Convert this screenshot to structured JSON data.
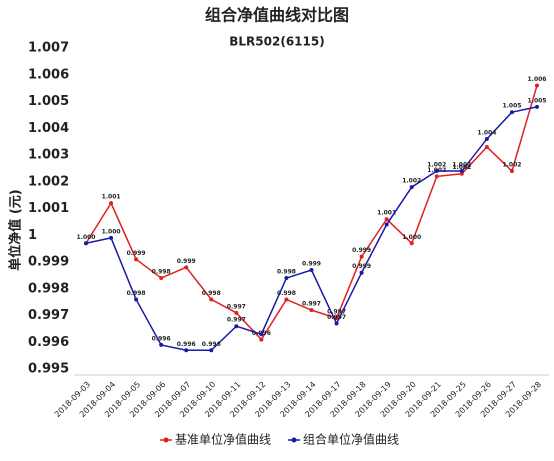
{
  "chart_data": {
    "type": "line",
    "title": "组合净值曲线对比图",
    "subtitle": "BLR502(6115)",
    "y_label": "单位净值 (元)",
    "categories": [
      "2018-09-03",
      "2018-09-04",
      "2018-09-05",
      "2018-09-06",
      "2018-09-07",
      "2018-09-10",
      "2018-09-11",
      "2018-09-12",
      "2018-09-13",
      "2018-09-14",
      "2018-09-17",
      "2018-09-18",
      "2018-09-19",
      "2018-09-20",
      "2018-09-21",
      "2018-09-25",
      "2018-09-26",
      "2018-09-27",
      "2018-09-28"
    ],
    "series": [
      {
        "name": "基准单位净值曲线",
        "color": "#e02020",
        "values": [
          0.9997,
          1.0012,
          0.9991,
          0.9984,
          0.9988,
          0.9976,
          0.9971,
          0.9961,
          0.9976,
          0.9972,
          0.9969,
          0.9992,
          1.0006,
          0.9997,
          1.0022,
          1.0023,
          1.0033,
          1.0024,
          1.0056
        ],
        "value_labels": [
          "1.000",
          "1.001",
          "0.999",
          "0.998",
          "0.999",
          "0.998",
          "0.997",
          "0.996",
          "0.998",
          "0.997",
          "0.997",
          "0.999",
          "1.001",
          "1.000",
          "1.002",
          "1.002",
          null,
          "1.002",
          "1.006"
        ]
      },
      {
        "name": "组合单位净值曲线",
        "color": "#1a1aa8",
        "values": [
          0.9997,
          0.9999,
          0.9976,
          0.9959,
          0.9957,
          0.9957,
          0.9966,
          0.9963,
          0.9984,
          0.9987,
          0.9967,
          0.9986,
          1.0004,
          1.0018,
          1.0024,
          1.0024,
          1.0036,
          1.0046,
          1.0048
        ],
        "value_labels": [
          null,
          "1.000",
          "0.998",
          "0.996",
          "0.996",
          "0.996",
          "0.997",
          null,
          "0.998",
          "0.999",
          "0.997",
          "0.999",
          null,
          "1.002",
          "1.002",
          "1.002",
          "1.004",
          "1.005",
          "1.005"
        ]
      }
    ],
    "ylim": [
      0.995,
      1.007
    ],
    "yticks": [
      0.995,
      0.996,
      0.997,
      0.998,
      0.999,
      1,
      1.001,
      1.002,
      1.003,
      1.004,
      1.005,
      1.006,
      1.007
    ],
    "grid": false
  }
}
